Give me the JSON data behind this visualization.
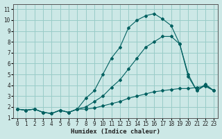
{
  "xlabel": "Humidex (Indice chaleur)",
  "ylabel": "",
  "background_color": "#cce8e6",
  "grid_color": "#99ccc8",
  "line_color": "#006060",
  "xlim": [
    -0.5,
    23.5
  ],
  "ylim": [
    1,
    11.5
  ],
  "xticks": [
    0,
    1,
    2,
    3,
    4,
    5,
    6,
    7,
    8,
    9,
    10,
    11,
    12,
    13,
    14,
    15,
    16,
    17,
    18,
    19,
    20,
    21,
    22,
    23
  ],
  "yticks": [
    1,
    2,
    3,
    4,
    5,
    6,
    7,
    8,
    9,
    10,
    11
  ],
  "series1_x": [
    0,
    1,
    2,
    3,
    4,
    5,
    6,
    7,
    8,
    9,
    10,
    11,
    12,
    13,
    14,
    15,
    16,
    17,
    18,
    19,
    20,
    21,
    22,
    23
  ],
  "series1_y": [
    1.8,
    1.7,
    1.8,
    1.5,
    1.4,
    1.7,
    1.5,
    1.8,
    1.8,
    1.9,
    2.1,
    2.3,
    2.5,
    2.8,
    3.0,
    3.2,
    3.4,
    3.5,
    3.6,
    3.7,
    3.7,
    3.8,
    3.9,
    3.5
  ],
  "series2_x": [
    0,
    1,
    2,
    3,
    4,
    5,
    6,
    7,
    8,
    9,
    10,
    11,
    12,
    13,
    14,
    15,
    16,
    17,
    18,
    19,
    20,
    21,
    22,
    23
  ],
  "series2_y": [
    1.8,
    1.7,
    1.8,
    1.5,
    1.4,
    1.7,
    1.5,
    1.8,
    2.8,
    3.5,
    5.0,
    6.5,
    7.5,
    9.3,
    10.0,
    10.4,
    10.6,
    10.1,
    9.5,
    7.8,
    4.8,
    3.5,
    4.1,
    3.5
  ],
  "series3_x": [
    0,
    1,
    2,
    3,
    4,
    5,
    6,
    7,
    8,
    9,
    10,
    11,
    12,
    13,
    14,
    15,
    16,
    17,
    18,
    19,
    20,
    21,
    22,
    23
  ],
  "series3_y": [
    1.8,
    1.7,
    1.8,
    1.5,
    1.4,
    1.7,
    1.5,
    1.8,
    2.0,
    2.5,
    3.0,
    3.8,
    4.5,
    5.5,
    6.5,
    7.5,
    8.0,
    8.5,
    8.5,
    7.8,
    5.0,
    3.5,
    4.0,
    3.5
  ]
}
